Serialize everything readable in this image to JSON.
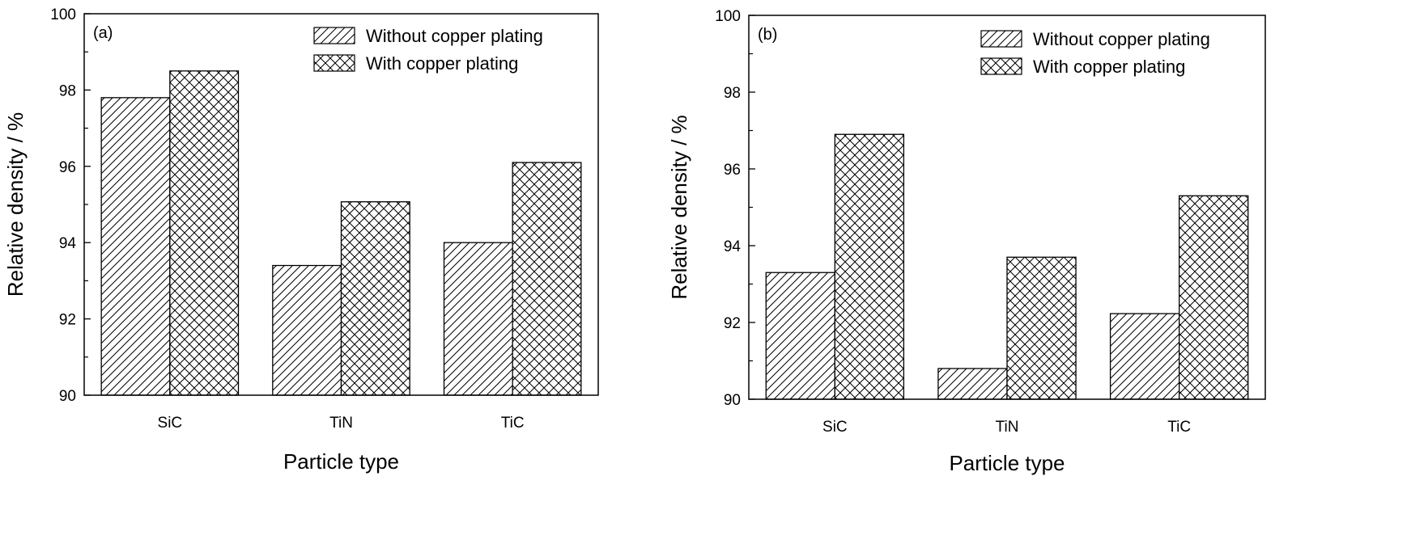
{
  "chart_data": [
    {
      "type": "bar",
      "panel_label": "(a)",
      "categories": [
        "SiC",
        "TiN",
        "TiC"
      ],
      "series": [
        {
          "name": "Without copper plating",
          "pattern": "diagonal-hatch",
          "values": [
            97.8,
            93.4,
            94.0
          ]
        },
        {
          "name": "With copper plating",
          "pattern": "cross-hatch",
          "values": [
            98.5,
            95.07,
            96.1
          ]
        }
      ],
      "xlabel": "Particle type",
      "ylabel": "Relative density / %",
      "ylim": [
        90,
        100
      ],
      "yticks": [
        90,
        92,
        94,
        96,
        98,
        100
      ],
      "legend_position": "top-right",
      "grid": false
    },
    {
      "type": "bar",
      "panel_label": "(b)",
      "categories": [
        "SiC",
        "TiN",
        "TiC"
      ],
      "series": [
        {
          "name": "Without copper plating",
          "pattern": "diagonal-hatch",
          "values": [
            93.3,
            90.8,
            92.23
          ]
        },
        {
          "name": "With copper plating",
          "pattern": "cross-hatch",
          "values": [
            96.9,
            93.7,
            95.3
          ]
        }
      ],
      "xlabel": "Particle type",
      "ylabel": "Relative density / %",
      "ylim": [
        90,
        100
      ],
      "yticks": [
        90,
        92,
        94,
        96,
        98,
        100
      ],
      "legend_position": "top-right",
      "grid": false
    }
  ]
}
